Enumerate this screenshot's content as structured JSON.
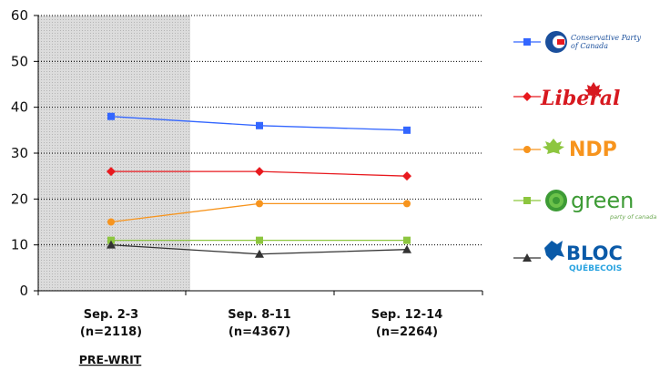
{
  "chart_data": {
    "type": "line",
    "categories": [
      "Sep. 2-3",
      "Sep. 8-11",
      "Sep. 12-14"
    ],
    "category_sublabels": [
      "(n=2118)",
      "(n=4367)",
      "(n=2264)"
    ],
    "shaded_period_label": "PRE-WRIT",
    "ylim": [
      0,
      60
    ],
    "yticks": [
      0,
      10,
      20,
      30,
      40,
      50,
      60
    ],
    "grid": "horizontal dotted",
    "legend_position": "right",
    "series": [
      {
        "key": "conservative",
        "color": "#3366ff",
        "marker": "square",
        "values": [
          38,
          36,
          35
        ]
      },
      {
        "key": "liberal",
        "color": "#e8191e",
        "marker": "diamond",
        "values": [
          26,
          26,
          25
        ]
      },
      {
        "key": "ndp",
        "color": "#f7941d",
        "marker": "circle",
        "values": [
          15,
          19,
          19
        ]
      },
      {
        "key": "green",
        "color": "#8dc63f",
        "marker": "square",
        "values": [
          11,
          11,
          11
        ]
      },
      {
        "key": "bloc",
        "color": "#333333",
        "marker": "triangle",
        "values": [
          10,
          8,
          9
        ]
      }
    ]
  },
  "legend_logos": {
    "conservative_line1": "Conservative Party",
    "conservative_line2": "of Canada",
    "liberal": "Liberal",
    "ndp": "NDP",
    "green": "green",
    "green_sub": "party of canada",
    "bloc": "BLOC",
    "bloc_sub": "QUÉBECOIS"
  }
}
